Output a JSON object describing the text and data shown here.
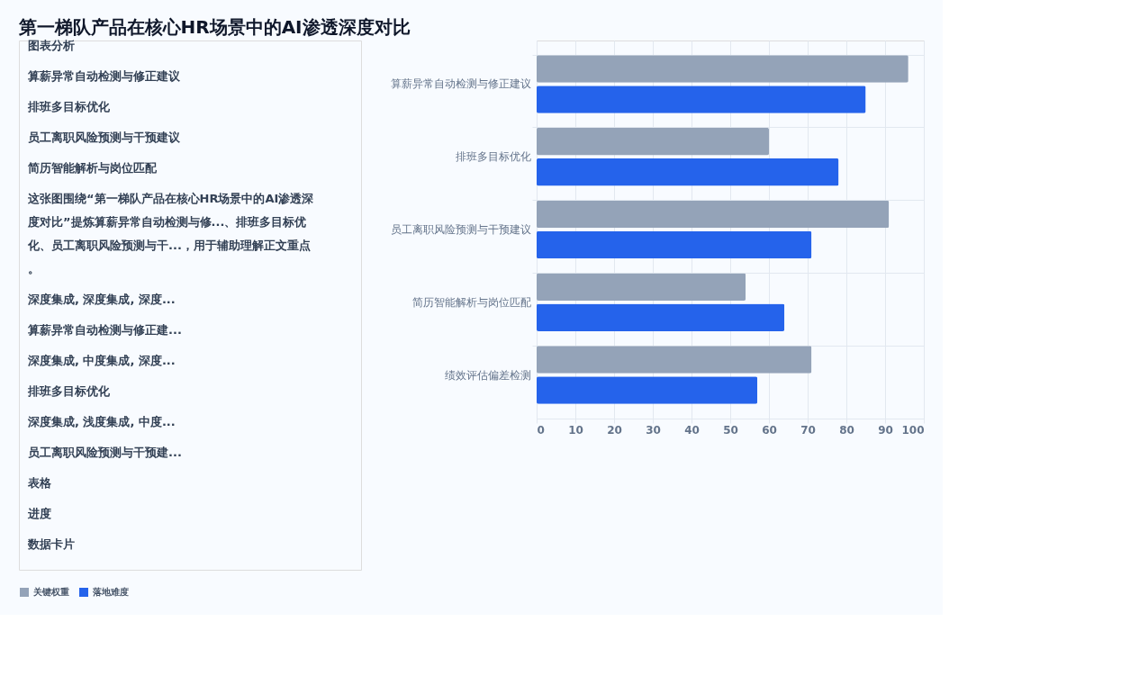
{
  "chart_data": {
    "type": "bar",
    "orientation": "horizontal",
    "title": "第一梯队产品在核心HR场景中的AI渗透深度对比",
    "categories": [
      "算薪异常自动检测与修正建议",
      "排班多目标优化",
      "员工离职风险预测与干预建议",
      "简历智能解析与岗位匹配",
      "绩效评估偏差检测"
    ],
    "series": [
      {
        "name": "关键权重",
        "color": "#94a3b8",
        "values": [
          96,
          60,
          91,
          54,
          71
        ]
      },
      {
        "name": "落地难度",
        "color": "#2563eb",
        "values": [
          85,
          78,
          71,
          64,
          57
        ]
      }
    ],
    "xlim": [
      0,
      100
    ],
    "xticks": [
      0,
      10,
      20,
      30,
      40,
      50,
      60,
      70,
      80,
      90,
      100
    ],
    "grid": true,
    "legend": "bottom",
    "annotations": [
      "图表分析",
      "算薪异常自动检测与修正建议",
      "排班多目标优化",
      "员工离职风险预测与干预建议",
      "简历智能解析与岗位匹配",
      "这张图围绕“第一梯队产品在核心HR场景中的AI渗透深度对比”提炼算薪异常自动检测与修...、排班多目标优化、员工离职风险预测与干...，用于辅助理解正文重点。",
      "深度集成, 深度集成, 深度...",
      "算薪异常自动检测与修正建...",
      "深度集成, 中度集成, 深度...",
      "排班多目标优化",
      "深度集成, 浅度集成, 中度...",
      "员工离职风险预测与干预建...",
      "表格",
      "进度",
      "数据卡片"
    ]
  }
}
